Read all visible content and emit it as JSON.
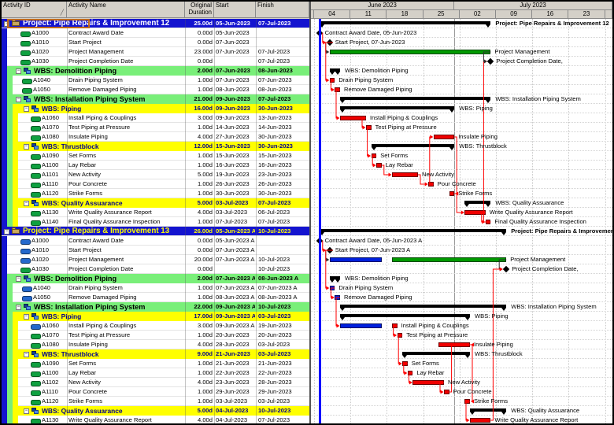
{
  "colors": {
    "header_bg": "#d4d0c8",
    "project_band": "#1414cf",
    "project_text_12": "#ffffff",
    "project_text_13": "#ffff00",
    "wbs1_band": "#79ef79",
    "wbs1_text": "#000000",
    "wbs2_band": "#ffff00",
    "wbs2_text": "#00008b",
    "critical_bar": "#ee0000",
    "normal_bar": "#009a00",
    "actual_bar": "#0020dd",
    "summary_bar": "#000000",
    "data_date_line": "#0008ff",
    "link_critical": "#ff0000",
    "link_normal": "#303030",
    "icon_green": "#0fa040",
    "icon_blue": "#2468cc",
    "focus_box": "#c06a1c"
  },
  "table": {
    "columns": [
      "Activity ID",
      "Activity Name",
      "Original Duration",
      "Start",
      "Finish"
    ]
  },
  "timeline": {
    "months": [
      {
        "label": "June 2023"
      },
      {
        "label": "July 2023"
      }
    ],
    "weeks": [
      "04",
      "11",
      "18",
      "25",
      "02",
      "09",
      "16",
      "23"
    ],
    "month_split_date": "2023-07-01",
    "data_date": "2023-06-05"
  },
  "rows": [
    {
      "kind": "project",
      "proj": 12,
      "name": "Project: Pipe Repairs & Improvement 12",
      "dur": "25.00d",
      "start": "05-Jun-2023",
      "finish": "07-Jul-2023",
      "g": {
        "t": "summary",
        "s": "2023-06-05",
        "f": "2023-07-07",
        "label": "Project: Pipe Repairs & Improvement 12"
      },
      "focus": true
    },
    {
      "kind": "act",
      "lvl": 1,
      "icon": "green",
      "id": "A1000",
      "name": "Contract Award Date",
      "dur": "0.00d",
      "start": "05-Jun-2023",
      "finish": "",
      "g": {
        "t": "ms",
        "d": "2023-06-05",
        "label": "Contract Award Date, 05-Jun-2023"
      }
    },
    {
      "kind": "act",
      "lvl": 1,
      "icon": "green",
      "id": "A1010",
      "name": "Start Project",
      "dur": "0.00d",
      "start": "07-Jun-2023",
      "finish": "",
      "g": {
        "t": "ms",
        "d": "2023-06-07",
        "label": "Start Project, 07-Jun-2023"
      }
    },
    {
      "kind": "act",
      "lvl": 1,
      "icon": "green",
      "id": "A1020",
      "name": "Project Management",
      "dur": "23.00d",
      "start": "07-Jun-2023",
      "finish": "07-Jul-2023",
      "g": {
        "t": "bar",
        "segs": [
          [
            "2023-06-07",
            "2023-07-07",
            "normal"
          ]
        ],
        "label": "Project Management"
      }
    },
    {
      "kind": "act",
      "lvl": 1,
      "icon": "green",
      "id": "A1030",
      "name": "Project Completion Date",
      "dur": "0.00d",
      "start": "",
      "finish": "07-Jul-2023",
      "g": {
        "t": "ms",
        "d": "2023-07-07",
        "eod": true,
        "label": "Project Completion Date,"
      }
    },
    {
      "kind": "wbs1",
      "name": "WBS: Demolition Piping",
      "dur": "2.00d",
      "start": "07-Jun-2023",
      "finish": "08-Jun-2023",
      "g": {
        "t": "summary",
        "s": "2023-06-07",
        "f": "2023-06-08",
        "label": "WBS: Demolition Piping"
      }
    },
    {
      "kind": "act",
      "lvl": 2,
      "icon": "green",
      "id": "A1040",
      "name": "Drain Piping System",
      "dur": "1.00d",
      "start": "07-Jun-2023",
      "finish": "07-Jun-2023",
      "g": {
        "t": "bar",
        "segs": [
          [
            "2023-06-07",
            "2023-06-07",
            "critical"
          ]
        ],
        "label": "Drain Piping System"
      }
    },
    {
      "kind": "act",
      "lvl": 2,
      "icon": "green",
      "id": "A1050",
      "name": "Remove Damaged Piping",
      "dur": "1.00d",
      "start": "08-Jun-2023",
      "finish": "08-Jun-2023",
      "g": {
        "t": "bar",
        "segs": [
          [
            "2023-06-08",
            "2023-06-08",
            "critical"
          ]
        ],
        "label": "Remove Damaged Piping"
      }
    },
    {
      "kind": "wbs1",
      "name": "WBS: Installation Piping System",
      "dur": "21.00d",
      "start": "09-Jun-2023",
      "finish": "07-Jul-2023",
      "g": {
        "t": "summary",
        "s": "2023-06-09",
        "f": "2023-07-07",
        "label": "WBS: Installation Piping System"
      }
    },
    {
      "kind": "wbs2",
      "name": "WBS: Piping",
      "dur": "16.00d",
      "start": "09-Jun-2023",
      "finish": "30-Jun-2023",
      "g": {
        "t": "summary",
        "s": "2023-06-09",
        "f": "2023-06-30",
        "label": "WBS: Piping"
      }
    },
    {
      "kind": "act",
      "lvl": 3,
      "icon": "green",
      "id": "A1060",
      "name": "Install Piping & Couplings",
      "dur": "3.00d",
      "start": "09-Jun-2023",
      "finish": "13-Jun-2023",
      "g": {
        "t": "bar",
        "segs": [
          [
            "2023-06-09",
            "2023-06-13",
            "critical"
          ]
        ],
        "label": "Install Piping & Couplings"
      }
    },
    {
      "kind": "act",
      "lvl": 3,
      "icon": "green",
      "id": "A1070",
      "name": "Test Piping at Pressure",
      "dur": "1.00d",
      "start": "14-Jun-2023",
      "finish": "14-Jun-2023",
      "g": {
        "t": "bar",
        "segs": [
          [
            "2023-06-14",
            "2023-06-14",
            "critical"
          ]
        ],
        "label": "Test Piping at Pressure"
      }
    },
    {
      "kind": "act",
      "lvl": 3,
      "icon": "green",
      "id": "A1080",
      "name": "Insulate Piping",
      "dur": "4.00d",
      "start": "27-Jun-2023",
      "finish": "30-Jun-2023",
      "g": {
        "t": "bar",
        "segs": [
          [
            "2023-06-27",
            "2023-06-30",
            "critical"
          ]
        ],
        "label": "Insulate Piping"
      }
    },
    {
      "kind": "wbs2",
      "name": "WBS: Thrustblock",
      "dur": "12.00d",
      "start": "15-Jun-2023",
      "finish": "30-Jun-2023",
      "g": {
        "t": "summary",
        "s": "2023-06-15",
        "f": "2023-06-30",
        "label": "WBS: Thrustblock"
      }
    },
    {
      "kind": "act",
      "lvl": 3,
      "icon": "green",
      "id": "A1090",
      "name": "Set Forms",
      "dur": "1.00d",
      "start": "15-Jun-2023",
      "finish": "15-Jun-2023",
      "g": {
        "t": "bar",
        "segs": [
          [
            "2023-06-15",
            "2023-06-15",
            "critical"
          ]
        ],
        "label": "Set Forms"
      }
    },
    {
      "kind": "act",
      "lvl": 3,
      "icon": "green",
      "id": "A1100",
      "name": "Lay Rebar",
      "dur": "1.00d",
      "start": "16-Jun-2023",
      "finish": "16-Jun-2023",
      "g": {
        "t": "bar",
        "segs": [
          [
            "2023-06-16",
            "2023-06-16",
            "critical"
          ]
        ],
        "label": "Lay Rebar"
      }
    },
    {
      "kind": "act",
      "lvl": 3,
      "icon": "green",
      "id": "A1101",
      "name": "New Activity",
      "dur": "5.00d",
      "start": "19-Jun-2023",
      "finish": "23-Jun-2023",
      "g": {
        "t": "bar",
        "segs": [
          [
            "2023-06-19",
            "2023-06-23",
            "critical"
          ]
        ],
        "label": "New Activity"
      }
    },
    {
      "kind": "act",
      "lvl": 3,
      "icon": "green",
      "id": "A1110",
      "name": "Pour Concrete",
      "dur": "1.00d",
      "start": "26-Jun-2023",
      "finish": "26-Jun-2023",
      "g": {
        "t": "bar",
        "segs": [
          [
            "2023-06-26",
            "2023-06-26",
            "critical"
          ]
        ],
        "label": "Pour Concrete"
      }
    },
    {
      "kind": "act",
      "lvl": 3,
      "icon": "green",
      "id": "A1120",
      "name": "Strike Forms",
      "dur": "1.00d",
      "start": "30-Jun-2023",
      "finish": "30-Jun-2023",
      "g": {
        "t": "bar",
        "segs": [
          [
            "2023-06-30",
            "2023-06-30",
            "critical"
          ]
        ],
        "label": "Strike Forms"
      }
    },
    {
      "kind": "wbs2",
      "name": "WBS: Quality Assuarance",
      "dur": "5.00d",
      "start": "03-Jul-2023",
      "finish": "07-Jul-2023",
      "g": {
        "t": "summary",
        "s": "2023-07-03",
        "f": "2023-07-07",
        "label": "WBS: Quality Assuarance"
      }
    },
    {
      "kind": "act",
      "lvl": 3,
      "icon": "green",
      "id": "A1130",
      "name": "Write Quality Assurance Report",
      "dur": "4.00d",
      "start": "03-Jul-2023",
      "finish": "06-Jul-2023",
      "g": {
        "t": "bar",
        "segs": [
          [
            "2023-07-03",
            "2023-07-06",
            "critical"
          ]
        ],
        "label": "Write Quality Assurance Report"
      }
    },
    {
      "kind": "act",
      "lvl": 3,
      "icon": "green",
      "id": "A1140",
      "name": "Final Quality Assurance Inspection",
      "dur": "1.00d",
      "start": "07-Jul-2023",
      "finish": "07-Jul-2023",
      "g": {
        "t": "bar",
        "segs": [
          [
            "2023-07-07",
            "2023-07-07",
            "critical"
          ]
        ],
        "label": "Final Quality Assurance Inspection"
      }
    },
    {
      "kind": "project",
      "proj": 13,
      "name": "Project: Pipe Repairs & Improvement 13",
      "dur": "26.00d",
      "start": "05-Jun-2023 A",
      "finish": "10-Jul-2023",
      "g": {
        "t": "summary",
        "s": "2023-06-05",
        "f": "2023-07-10",
        "label": "Project: Pipe Repairs & Improvement 13"
      }
    },
    {
      "kind": "act",
      "lvl": 1,
      "icon": "blue",
      "id": "A1000",
      "name": "Contract Award Date",
      "dur": "0.00d",
      "start": "05-Jun-2023 A",
      "finish": "",
      "g": {
        "t": "ms",
        "d": "2023-06-05",
        "label": "Contract Award Date, 05-Jun-2023 A"
      }
    },
    {
      "kind": "act",
      "lvl": 1,
      "icon": "blue",
      "id": "A1010",
      "name": "Start Project",
      "dur": "0.00d",
      "start": "07-Jun-2023 A",
      "finish": "",
      "g": {
        "t": "ms",
        "d": "2023-06-07",
        "label": "Start Project, 07-Jun-2023 A"
      }
    },
    {
      "kind": "act",
      "lvl": 1,
      "icon": "blue",
      "id": "A1020",
      "name": "Project Management",
      "dur": "20.00d",
      "start": "07-Jun-2023 A",
      "finish": "10-Jul-2023",
      "g": {
        "t": "bar",
        "segs": [
          [
            "2023-06-07",
            "2023-06-16",
            "actual"
          ],
          [
            "2023-06-19",
            "2023-07-10",
            "normal"
          ]
        ],
        "label": "Project Management"
      }
    },
    {
      "kind": "act",
      "lvl": 1,
      "icon": "green",
      "id": "A1030",
      "name": "Project Completion Date",
      "dur": "0.00d",
      "start": "",
      "finish": "10-Jul-2023",
      "g": {
        "t": "ms",
        "d": "2023-07-10",
        "eod": true,
        "label": "Project Completion Date,"
      }
    },
    {
      "kind": "wbs1",
      "name": "WBS: Demolition Piping",
      "dur": "2.00d",
      "start": "07-Jun-2023 A",
      "finish": "08-Jun-2023 A",
      "g": {
        "t": "summary",
        "s": "2023-06-07",
        "f": "2023-06-08",
        "label": "WBS: Demolition Piping"
      }
    },
    {
      "kind": "act",
      "lvl": 2,
      "icon": "blue",
      "id": "A1040",
      "name": "Drain Piping System",
      "dur": "1.00d",
      "start": "07-Jun-2023 A",
      "finish": "07-Jun-2023 A",
      "g": {
        "t": "bar",
        "segs": [
          [
            "2023-06-07",
            "2023-06-07",
            "actual"
          ]
        ],
        "label": "Drain Piping System"
      }
    },
    {
      "kind": "act",
      "lvl": 2,
      "icon": "blue",
      "id": "A1050",
      "name": "Remove Damaged Piping",
      "dur": "1.00d",
      "start": "08-Jun-2023 A",
      "finish": "08-Jun-2023 A",
      "g": {
        "t": "bar",
        "segs": [
          [
            "2023-06-08",
            "2023-06-08",
            "actual"
          ]
        ],
        "label": "Remove Damaged Piping"
      }
    },
    {
      "kind": "wbs1",
      "name": "WBS: Installation Piping System",
      "dur": "22.00d",
      "start": "09-Jun-2023 A",
      "finish": "10-Jul-2023",
      "g": {
        "t": "summary",
        "s": "2023-06-09",
        "f": "2023-07-10",
        "label": "WBS: Installation Piping System"
      }
    },
    {
      "kind": "wbs2",
      "name": "WBS: Piping",
      "dur": "17.00d",
      "start": "09-Jun-2023 A",
      "finish": "03-Jul-2023",
      "g": {
        "t": "summary",
        "s": "2023-06-09",
        "f": "2023-07-03",
        "label": "WBS: Piping"
      }
    },
    {
      "kind": "act",
      "lvl": 3,
      "icon": "blue",
      "id": "A1060",
      "name": "Install Piping & Couplings",
      "dur": "3.00d",
      "start": "09-Jun-2023 A",
      "finish": "19-Jun-2023",
      "g": {
        "t": "bar",
        "segs": [
          [
            "2023-06-09",
            "2023-06-16",
            "actual"
          ],
          [
            "2023-06-19",
            "2023-06-19",
            "critical"
          ]
        ],
        "label": "Install Piping & Couplings"
      }
    },
    {
      "kind": "act",
      "lvl": 3,
      "icon": "green",
      "id": "A1070",
      "name": "Test Piping at Pressure",
      "dur": "1.00d",
      "start": "20-Jun-2023",
      "finish": "20-Jun-2023",
      "g": {
        "t": "bar",
        "segs": [
          [
            "2023-06-20",
            "2023-06-20",
            "critical"
          ]
        ],
        "label": "Test Piping at Pressure"
      }
    },
    {
      "kind": "act",
      "lvl": 3,
      "icon": "green",
      "id": "A1080",
      "name": "Insulate Piping",
      "dur": "4.00d",
      "start": "28-Jun-2023",
      "finish": "03-Jul-2023",
      "g": {
        "t": "bar",
        "segs": [
          [
            "2023-06-28",
            "2023-07-03",
            "critical"
          ]
        ],
        "label": "Insulate Piping"
      }
    },
    {
      "kind": "wbs2",
      "name": "WBS: Thrustblock",
      "dur": "9.00d",
      "start": "21-Jun-2023",
      "finish": "03-Jul-2023",
      "g": {
        "t": "summary",
        "s": "2023-06-21",
        "f": "2023-07-03",
        "label": "WBS: Thrustblock"
      }
    },
    {
      "kind": "act",
      "lvl": 3,
      "icon": "green",
      "id": "A1090",
      "name": "Set Forms",
      "dur": "1.00d",
      "start": "21-Jun-2023",
      "finish": "21-Jun-2023",
      "g": {
        "t": "bar",
        "segs": [
          [
            "2023-06-21",
            "2023-06-21",
            "critical"
          ]
        ],
        "label": "Set Forms"
      }
    },
    {
      "kind": "act",
      "lvl": 3,
      "icon": "green",
      "id": "A1100",
      "name": "Lay Rebar",
      "dur": "1.00d",
      "start": "22-Jun-2023",
      "finish": "22-Jun-2023",
      "g": {
        "t": "bar",
        "segs": [
          [
            "2023-06-22",
            "2023-06-22",
            "critical"
          ]
        ],
        "label": "Lay Rebar"
      }
    },
    {
      "kind": "act",
      "lvl": 3,
      "icon": "green",
      "id": "A1102",
      "name": "New Activity",
      "dur": "4.00d",
      "start": "23-Jun-2023",
      "finish": "28-Jun-2023",
      "g": {
        "t": "bar",
        "segs": [
          [
            "2023-06-23",
            "2023-06-28",
            "critical"
          ]
        ],
        "label": "New Activity"
      }
    },
    {
      "kind": "act",
      "lvl": 3,
      "icon": "green",
      "id": "A1110",
      "name": "Pour Concrete",
      "dur": "1.00d",
      "start": "29-Jun-2023",
      "finish": "29-Jun-2023",
      "g": {
        "t": "bar",
        "segs": [
          [
            "2023-06-29",
            "2023-06-29",
            "critical"
          ]
        ],
        "label": "Pour Concrete"
      }
    },
    {
      "kind": "act",
      "lvl": 3,
      "icon": "green",
      "id": "A1120",
      "name": "Strike Forms",
      "dur": "1.00d",
      "start": "03-Jul-2023",
      "finish": "03-Jul-2023",
      "g": {
        "t": "bar",
        "segs": [
          [
            "2023-07-03",
            "2023-07-03",
            "critical"
          ]
        ],
        "label": "Strike Forms"
      }
    },
    {
      "kind": "wbs2",
      "name": "WBS: Quality Assuarance",
      "dur": "5.00d",
      "start": "04-Jul-2023",
      "finish": "10-Jul-2023",
      "g": {
        "t": "summary",
        "s": "2023-07-04",
        "f": "2023-07-10",
        "label": "WBS: Quality Assuarance"
      }
    },
    {
      "kind": "act",
      "lvl": 3,
      "icon": "green",
      "id": "A1130",
      "name": "Write Quality Assurance Report",
      "dur": "4.00d",
      "start": "04-Jul-2023",
      "finish": "07-Jul-2023",
      "g": {
        "t": "bar",
        "segs": [
          [
            "2023-07-04",
            "2023-07-07",
            "critical"
          ]
        ],
        "label": "Write Quality Assurance Report"
      }
    }
  ],
  "links": [
    [
      1,
      2,
      "r"
    ],
    [
      2,
      3,
      "k"
    ],
    [
      2,
      6,
      "r"
    ],
    [
      6,
      7,
      "r"
    ],
    [
      7,
      10,
      "r"
    ],
    [
      10,
      11,
      "r"
    ],
    [
      11,
      14,
      "r"
    ],
    [
      14,
      15,
      "r"
    ],
    [
      15,
      16,
      "r"
    ],
    [
      16,
      17,
      "r"
    ],
    [
      17,
      12,
      "r"
    ],
    [
      12,
      18,
      "r"
    ],
    [
      18,
      20,
      "r"
    ],
    [
      20,
      21,
      "r"
    ],
    [
      21,
      4,
      "r"
    ],
    [
      3,
      4,
      "k"
    ],
    [
      23,
      24,
      "r"
    ],
    [
      24,
      25,
      "k"
    ],
    [
      24,
      28,
      "r"
    ],
    [
      28,
      29,
      "r"
    ],
    [
      29,
      32,
      "r"
    ],
    [
      32,
      33,
      "r"
    ],
    [
      33,
      36,
      "r"
    ],
    [
      36,
      37,
      "r"
    ],
    [
      37,
      38,
      "r"
    ],
    [
      38,
      39,
      "r"
    ],
    [
      39,
      34,
      "r"
    ],
    [
      34,
      40,
      "r"
    ],
    [
      40,
      42,
      "r"
    ],
    [
      25,
      26,
      "k"
    ],
    [
      42,
      26,
      "r"
    ]
  ]
}
